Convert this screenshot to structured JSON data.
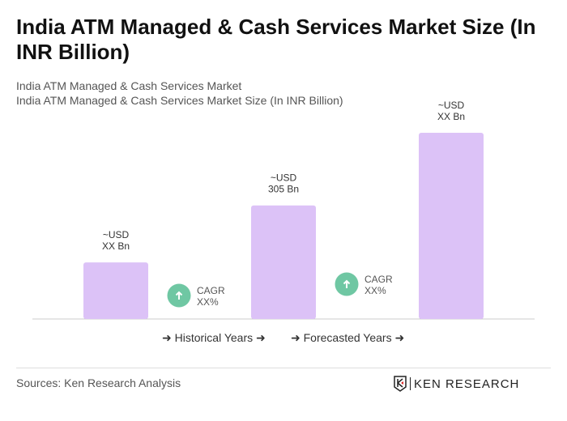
{
  "title": "India ATM Managed & Cash Services Market Size (In INR Billion)",
  "subtitle1": "India ATM Managed & Cash Services Market",
  "subtitle2": "India ATM Managed & Cash Services Market Size (In INR Billion)",
  "legend": {
    "historical": "Historical Years",
    "forecasted": "Forecasted Years"
  },
  "source": "Sources: Ken Research Analysis",
  "logo_text": "KEN RESEARCH",
  "colors": {
    "bar": "#dcc2f7",
    "cagr": "#6fc7a3",
    "axis": "#cccccc"
  },
  "chart_data": {
    "type": "bar",
    "values": [
      152,
      305,
      500
    ],
    "value_labels": [
      [
        "~USD",
        "XX Bn"
      ],
      [
        "~USD",
        "305 Bn"
      ],
      [
        "~USD",
        "XX Bn"
      ]
    ],
    "cagr": [
      {
        "label": "CAGR",
        "value": "XX%"
      },
      {
        "label": "CAGR",
        "value": "XX%"
      }
    ],
    "ylim": [
      0,
      500
    ],
    "grid": false
  }
}
